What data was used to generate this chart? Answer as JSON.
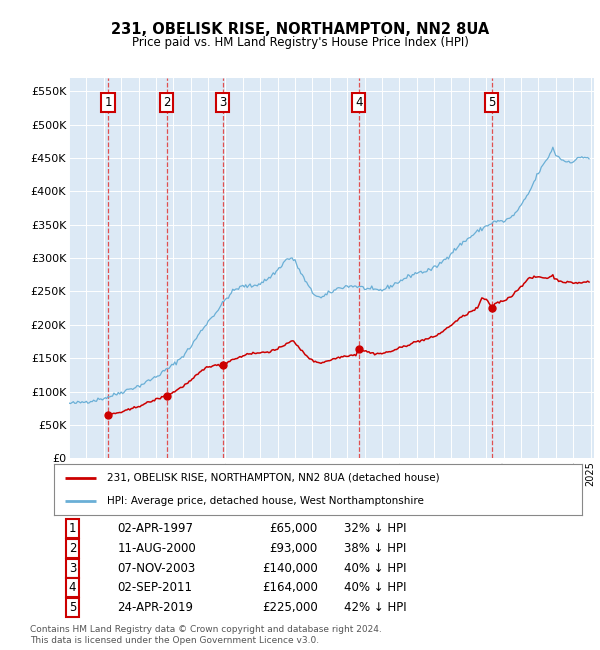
{
  "title": "231, OBELISK RISE, NORTHAMPTON, NN2 8UA",
  "subtitle": "Price paid vs. HM Land Registry's House Price Index (HPI)",
  "plot_bg_color": "#dce9f5",
  "yticks": [
    0,
    50000,
    100000,
    150000,
    200000,
    250000,
    300000,
    350000,
    400000,
    450000,
    500000,
    550000
  ],
  "ytick_labels": [
    "£0",
    "£50K",
    "£100K",
    "£150K",
    "£200K",
    "£250K",
    "£300K",
    "£350K",
    "£400K",
    "£450K",
    "£500K",
    "£550K"
  ],
  "xmin": 1995.0,
  "xmax": 2025.2,
  "ymin": 0,
  "ymax": 570000,
  "sale_dates": [
    1997.25,
    2000.61,
    2003.84,
    2011.67,
    2019.31
  ],
  "sale_prices": [
    65000,
    93000,
    140000,
    164000,
    225000
  ],
  "sale_labels": [
    "1",
    "2",
    "3",
    "4",
    "5"
  ],
  "sale_dates_str": [
    "02-APR-1997",
    "11-AUG-2000",
    "07-NOV-2003",
    "02-SEP-2011",
    "24-APR-2019"
  ],
  "sale_prices_str": [
    "£65,000",
    "£93,000",
    "£140,000",
    "£164,000",
    "£225,000"
  ],
  "sale_hpi_str": [
    "32% ↓ HPI",
    "38% ↓ HPI",
    "40% ↓ HPI",
    "40% ↓ HPI",
    "42% ↓ HPI"
  ],
  "hpi_line_color": "#6aafd6",
  "sale_line_color": "#cc0000",
  "vline_color": "#e05050",
  "legend_label_sale": "231, OBELISK RISE, NORTHAMPTON, NN2 8UA (detached house)",
  "legend_label_hpi": "HPI: Average price, detached house, West Northamptonshire",
  "footer_text": "Contains HM Land Registry data © Crown copyright and database right 2024.\nThis data is licensed under the Open Government Licence v3.0."
}
